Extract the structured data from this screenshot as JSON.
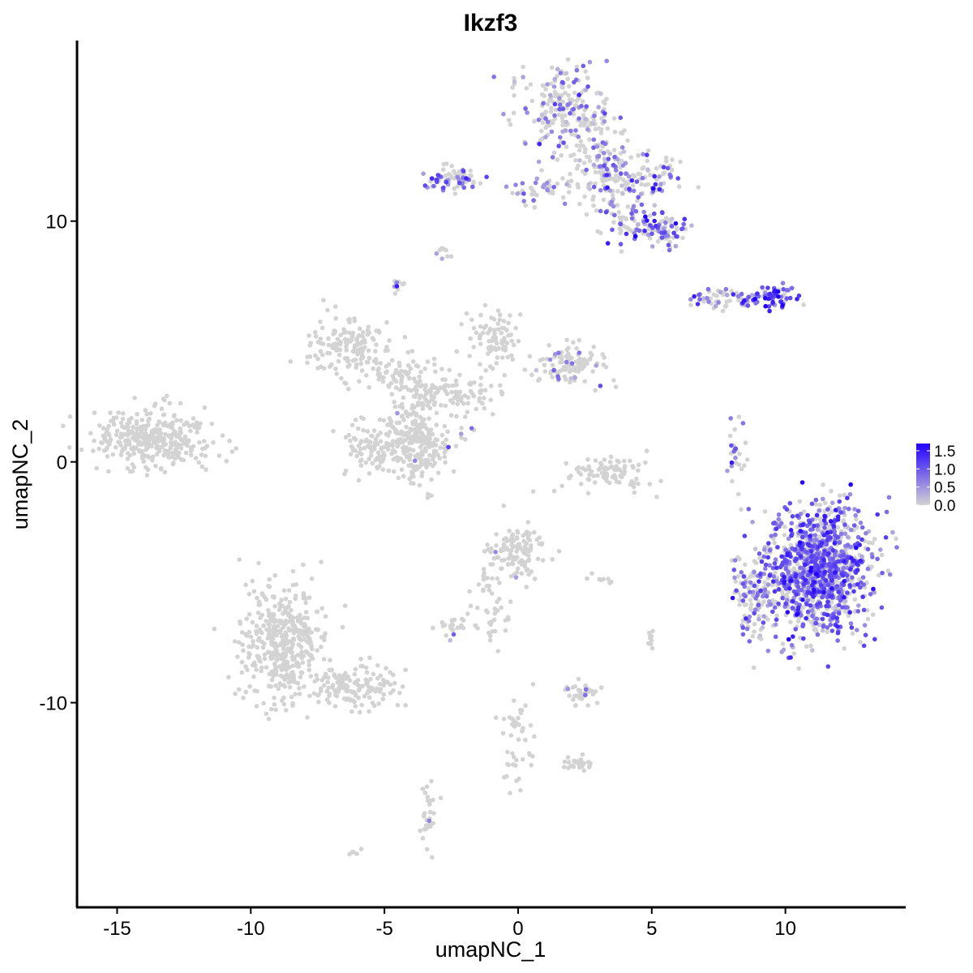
{
  "chart_data": {
    "type": "scatter",
    "title": "Ikzf3",
    "xlabel": "umapNC_1",
    "ylabel": "umapNC_2",
    "xlim": [
      -16.5,
      14.5
    ],
    "ylim": [
      -18.5,
      17.5
    ],
    "x_ticks": [
      -15,
      -10,
      -5,
      0,
      5,
      10
    ],
    "y_ticks": [
      -10,
      0,
      10
    ],
    "x_tick_labels": [
      "-15",
      "-10",
      "-5",
      "0",
      "5",
      "10"
    ],
    "y_tick_labels": [
      "-10",
      "0",
      "10"
    ],
    "grid": false,
    "color_scale": {
      "low_color": "#d3d3d3",
      "high_color": "#2200ff",
      "min": 0.0,
      "max": 1.7,
      "tick_values": [
        0.0,
        0.5,
        1.0,
        1.5
      ],
      "tick_labels": [
        "0.0",
        "0.5",
        "1.0",
        "1.5"
      ],
      "legend_position": "right"
    },
    "clusters": [
      {
        "id": "c1",
        "cx": -13.6,
        "cy": 1.0,
        "sx": 1.1,
        "sy": 0.6,
        "n": 340,
        "expr_frac": 0.0,
        "expr_mean": 0.0
      },
      {
        "id": "c2",
        "cx": -6.5,
        "cy": 4.8,
        "sx": 0.8,
        "sy": 0.55,
        "n": 140,
        "expr_frac": 0.0,
        "expr_mean": 0.0
      },
      {
        "id": "c3",
        "cx": -4.3,
        "cy": 3.6,
        "sx": 0.8,
        "sy": 0.5,
        "n": 90,
        "expr_frac": 0.02,
        "expr_mean": 0.4
      },
      {
        "id": "c4",
        "cx": -3.8,
        "cy": 0.7,
        "sx": 0.6,
        "sy": 0.8,
        "n": 220,
        "expr_frac": 0.01,
        "expr_mean": 0.4
      },
      {
        "id": "c5",
        "cx": -5.5,
        "cy": 0.6,
        "sx": 0.6,
        "sy": 0.6,
        "n": 90,
        "expr_frac": 0.0,
        "expr_mean": 0.0
      },
      {
        "id": "c6",
        "cx": -2.2,
        "cy": 2.8,
        "sx": 0.8,
        "sy": 0.4,
        "n": 90,
        "expr_frac": 0.02,
        "expr_mean": 0.4
      },
      {
        "id": "c7",
        "cx": -0.9,
        "cy": 5.2,
        "sx": 0.5,
        "sy": 0.6,
        "n": 80,
        "expr_frac": 0.0,
        "expr_mean": 0.0
      },
      {
        "id": "c8",
        "cx": 1.9,
        "cy": 4.0,
        "sx": 0.7,
        "sy": 0.4,
        "n": 110,
        "expr_frac": 0.12,
        "expr_mean": 0.5
      },
      {
        "id": "c9",
        "cx": 3.3,
        "cy": -0.5,
        "sx": 0.9,
        "sy": 0.4,
        "n": 90,
        "expr_frac": 0.0,
        "expr_mean": 0.0
      },
      {
        "id": "c10",
        "cx": 0.0,
        "cy": -3.7,
        "sx": 0.6,
        "sy": 0.5,
        "n": 120,
        "expr_frac": 0.05,
        "expr_mean": 0.6
      },
      {
        "id": "c11",
        "cx": -0.9,
        "cy": -6.0,
        "sx": 0.4,
        "sy": 0.9,
        "n": 45,
        "expr_frac": 0.0,
        "expr_mean": 0.0
      },
      {
        "id": "c12",
        "cx": -2.3,
        "cy": -6.9,
        "sx": 0.3,
        "sy": 0.2,
        "n": 25,
        "expr_frac": 0.05,
        "expr_mean": 0.6
      },
      {
        "id": "c13",
        "cx": -8.8,
        "cy": -7.5,
        "sx": 0.8,
        "sy": 1.2,
        "n": 430,
        "expr_frac": 0.0,
        "expr_mean": 0.0
      },
      {
        "id": "c14",
        "cx": -6.3,
        "cy": -9.4,
        "sx": 1.0,
        "sy": 0.4,
        "n": 150,
        "expr_frac": 0.01,
        "expr_mean": 0.5
      },
      {
        "id": "c15",
        "cx": 2.4,
        "cy": -9.6,
        "sx": 0.35,
        "sy": 0.25,
        "n": 40,
        "expr_frac": 0.15,
        "expr_mean": 0.6
      },
      {
        "id": "c16",
        "cx": 0.0,
        "cy": -11.5,
        "sx": 0.3,
        "sy": 1.1,
        "n": 45,
        "expr_frac": 0.0,
        "expr_mean": 0.0
      },
      {
        "id": "c17",
        "cx": 2.2,
        "cy": -12.6,
        "sx": 0.4,
        "sy": 0.2,
        "n": 25,
        "expr_frac": 0.0,
        "expr_mean": 0.0
      },
      {
        "id": "c18",
        "cx": -3.4,
        "cy": -14.7,
        "sx": 0.2,
        "sy": 0.6,
        "n": 30,
        "expr_frac": 0.03,
        "expr_mean": 0.5
      },
      {
        "id": "c19",
        "cx": 1.8,
        "cy": 14.5,
        "sx": 0.9,
        "sy": 0.9,
        "n": 230,
        "expr_frac": 0.35,
        "expr_mean": 0.6
      },
      {
        "id": "c20",
        "cx": 3.3,
        "cy": 12.0,
        "sx": 0.6,
        "sy": 0.9,
        "n": 140,
        "expr_frac": 0.35,
        "expr_mean": 0.7
      },
      {
        "id": "c21",
        "cx": 5.0,
        "cy": 11.8,
        "sx": 0.6,
        "sy": 0.5,
        "n": 70,
        "expr_frac": 0.4,
        "expr_mean": 0.8
      },
      {
        "id": "c22",
        "cx": 5.3,
        "cy": 9.6,
        "sx": 0.6,
        "sy": 0.35,
        "n": 90,
        "expr_frac": 0.6,
        "expr_mean": 0.9
      },
      {
        "id": "c23",
        "cx": 4.0,
        "cy": 10.2,
        "sx": 0.5,
        "sy": 0.5,
        "n": 40,
        "expr_frac": 0.45,
        "expr_mean": 0.7
      },
      {
        "id": "c24",
        "cx": -2.5,
        "cy": 11.7,
        "sx": 0.5,
        "sy": 0.3,
        "n": 70,
        "expr_frac": 0.5,
        "expr_mean": 0.8
      },
      {
        "id": "c25",
        "cx": 0.9,
        "cy": 11.2,
        "sx": 0.7,
        "sy": 0.25,
        "n": 40,
        "expr_frac": 0.4,
        "expr_mean": 0.7
      },
      {
        "id": "c26",
        "cx": 7.8,
        "cy": 6.8,
        "sx": 0.7,
        "sy": 0.2,
        "n": 60,
        "expr_frac": 0.45,
        "expr_mean": 0.7
      },
      {
        "id": "c27",
        "cx": 9.5,
        "cy": 6.9,
        "sx": 0.45,
        "sy": 0.25,
        "n": 60,
        "expr_frac": 0.85,
        "expr_mean": 1.2
      },
      {
        "id": "c28",
        "cx": -4.5,
        "cy": 7.4,
        "sx": 0.1,
        "sy": 0.2,
        "n": 10,
        "expr_frac": 0.5,
        "expr_mean": 0.8
      },
      {
        "id": "c29",
        "cx": -2.8,
        "cy": 8.7,
        "sx": 0.15,
        "sy": 0.15,
        "n": 8,
        "expr_frac": 0.4,
        "expr_mean": 0.6
      },
      {
        "id": "c30",
        "cx": 8.1,
        "cy": 0.4,
        "sx": 0.2,
        "sy": 0.7,
        "n": 25,
        "expr_frac": 0.45,
        "expr_mean": 0.7
      },
      {
        "id": "c31",
        "cx": 11.2,
        "cy": -4.5,
        "sx": 1.0,
        "sy": 1.3,
        "n": 1100,
        "expr_frac": 0.65,
        "expr_mean": 0.9
      },
      {
        "id": "c32",
        "cx": 8.8,
        "cy": -5.6,
        "sx": 0.4,
        "sy": 0.9,
        "n": 110,
        "expr_frac": 0.55,
        "expr_mean": 0.8
      },
      {
        "id": "c33",
        "cx": 5.0,
        "cy": -7.4,
        "sx": 0.1,
        "sy": 0.2,
        "n": 10,
        "expr_frac": 0.0,
        "expr_mean": 0.0
      },
      {
        "id": "c34",
        "cx": 3.1,
        "cy": -4.9,
        "sx": 0.3,
        "sy": 0.1,
        "n": 8,
        "expr_frac": 0.0,
        "expr_mean": 0.0
      },
      {
        "id": "c35",
        "cx": -6.1,
        "cy": -16.2,
        "sx": 0.1,
        "sy": 0.08,
        "n": 5,
        "expr_frac": 0.0,
        "expr_mean": 0.0
      },
      {
        "id": "c36",
        "cx": -2.5,
        "cy": 1.0,
        "sx": 0.3,
        "sy": 0.5,
        "n": 12,
        "expr_frac": 0.2,
        "expr_mean": 0.6
      },
      {
        "id": "c37",
        "cx": -4.0,
        "cy": 2.0,
        "sx": 0.4,
        "sy": 1.0,
        "n": 40,
        "expr_frac": 0.0,
        "expr_mean": 0.0
      }
    ]
  }
}
